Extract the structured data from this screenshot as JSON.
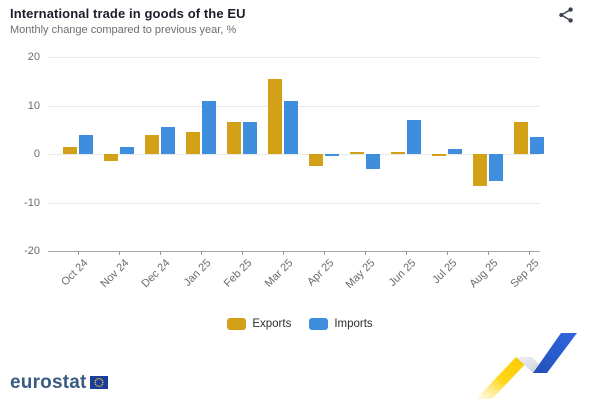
{
  "header": {
    "title": "International trade in goods of the EU",
    "subtitle": "Monthly change compared to previous year, %",
    "share_icon": "share-icon"
  },
  "chart_data": {
    "type": "bar",
    "title": "International trade in goods of the EU",
    "subtitle": "Monthly change compared to previous year, %",
    "xlabel": "",
    "ylabel": "%",
    "ylim": [
      -20,
      20
    ],
    "yticks": [
      20,
      10,
      0,
      -10,
      -20
    ],
    "grid": true,
    "legend_position": "bottom",
    "categories": [
      "Oct 24",
      "Nov 24",
      "Dec 24",
      "Jan 25",
      "Feb 25",
      "Mar 25",
      "Apr 25",
      "May 25",
      "Jun 25",
      "Jul 25",
      "Aug 25",
      "Sep 25"
    ],
    "series": [
      {
        "name": "Exports",
        "color": "#D2A118",
        "values": [
          1.5,
          -1.5,
          4,
          4.5,
          6.5,
          15.5,
          -2.5,
          0.5,
          0.5,
          -0.5,
          -6.5,
          6.5
        ]
      },
      {
        "name": "Imports",
        "color": "#3F8EDE",
        "values": [
          4,
          1.5,
          5.5,
          11,
          6.5,
          11,
          -0.5,
          -3,
          7,
          1,
          -5.5,
          3.5
        ]
      }
    ]
  },
  "footer": {
    "brand": "eurostat",
    "flag_icon": "eu-flag-icon",
    "deco_icon": "trend-zigzag-icon"
  },
  "colors": {
    "exports": "#D2A118",
    "imports": "#3F8EDE",
    "grid": "#e8e8e8",
    "axis": "#a9a9a9",
    "title": "#1d1d2b",
    "subtitle": "#6e6e6e",
    "brand_blue": "#3b5a82"
  }
}
